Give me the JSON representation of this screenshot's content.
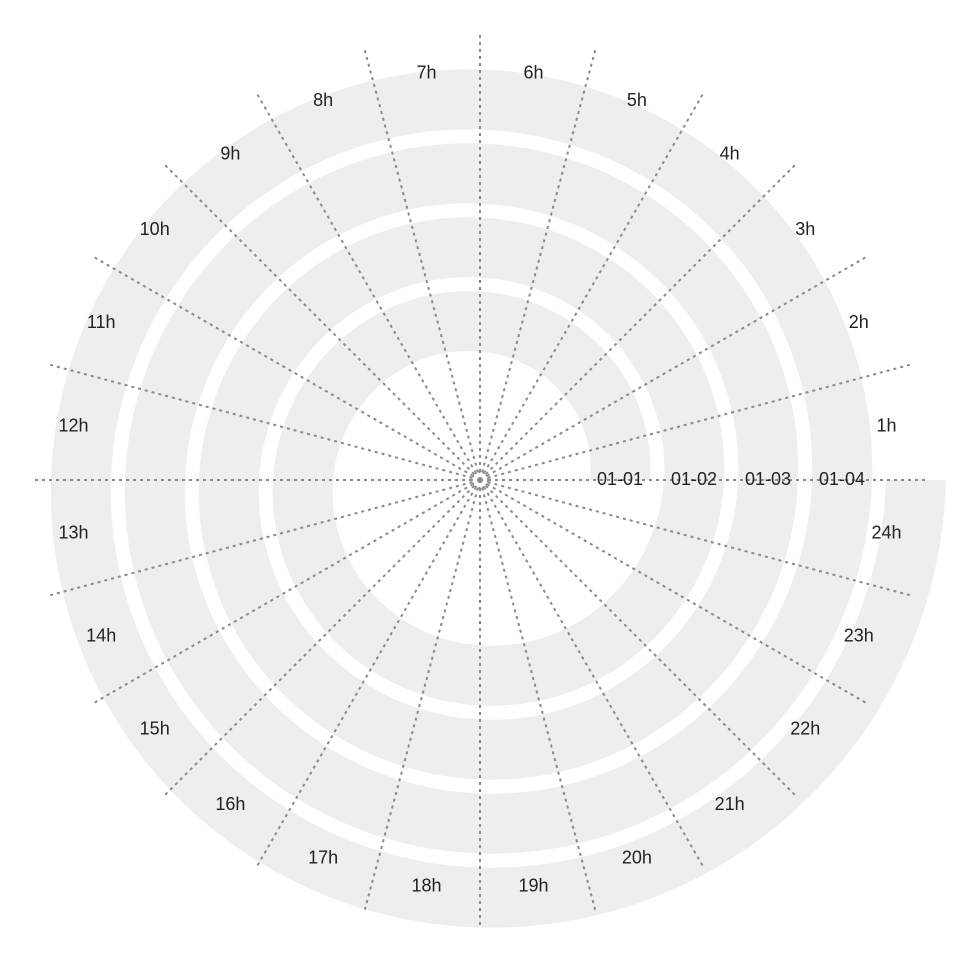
{
  "chart_data": {
    "type": "spiral",
    "title": "",
    "units_per_turn": "24 hours",
    "turns": 4,
    "start_angle_deg": 0,
    "direction": "counterclockwise",
    "hour_labels": [
      "1h",
      "2h",
      "3h",
      "4h",
      "5h",
      "6h",
      "7h",
      "8h",
      "9h",
      "10h",
      "11h",
      "12h",
      "13h",
      "14h",
      "15h",
      "16h",
      "17h",
      "18h",
      "19h",
      "20h",
      "21h",
      "22h",
      "23h",
      "24h"
    ],
    "date_labels": [
      "01-01",
      "01-02",
      "01-03",
      "01-04"
    ],
    "values": [],
    "colors": {
      "band": "#eeeeee",
      "spoke": "#8a8a8a",
      "text": "#222222",
      "background": "#ffffff"
    }
  }
}
